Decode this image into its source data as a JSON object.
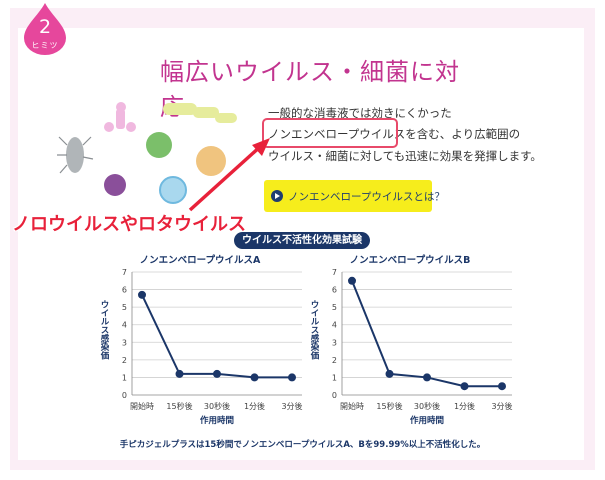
{
  "badge": {
    "number": "2",
    "label": "ヒミツ"
  },
  "title": "幅広いウイルス・細菌に対応",
  "description": {
    "line1": "一般的な消毒液では効きにくかった",
    "line2": "ノンエンベロープウイルスを含む、より広範囲の",
    "line3": "ウイルス・細菌に対しても迅速に効果を発揮します。"
  },
  "link_button": {
    "label": "ノンエンベロープウイルスとは？"
  },
  "annotation": "ノロウイルスやロタウイルス",
  "section_title": "ウイルス不活性化効果試験",
  "footnote": "手ピカジェルプラスは15秒間でノンエンベロープウイルスA、Bを99.99%以上不活性化した。",
  "colors": {
    "accent": "#c2348f",
    "line": "#1b3668",
    "highlight": "#f6ed1c",
    "annotation": "#e8213a"
  },
  "chart_data": [
    {
      "type": "line",
      "title": "ノンエンベロープウイルスA",
      "categories": [
        "開始時",
        "15秒後",
        "30秒後",
        "1分後",
        "3分後"
      ],
      "values": [
        5.7,
        1.2,
        1.2,
        1.0,
        1.0
      ],
      "xlabel": "作用時間",
      "ylabel": "ウイルス感染価",
      "ylim": [
        0,
        7
      ],
      "yticks": [
        "0",
        "1",
        "2",
        "3",
        "4",
        "5",
        "6",
        "7"
      ],
      "grid": true
    },
    {
      "type": "line",
      "title": "ノンエンベロープウイルスB",
      "categories": [
        "開始時",
        "15秒後",
        "30秒後",
        "1分後",
        "3分後"
      ],
      "values": [
        6.5,
        1.2,
        1.0,
        0.5,
        0.5
      ],
      "xlabel": "作用時間",
      "ylabel": "ウイルス感染価",
      "ylim": [
        0,
        7
      ],
      "yticks": [
        "0",
        "1",
        "2",
        "3",
        "4",
        "5",
        "6",
        "7"
      ],
      "grid": true
    }
  ]
}
